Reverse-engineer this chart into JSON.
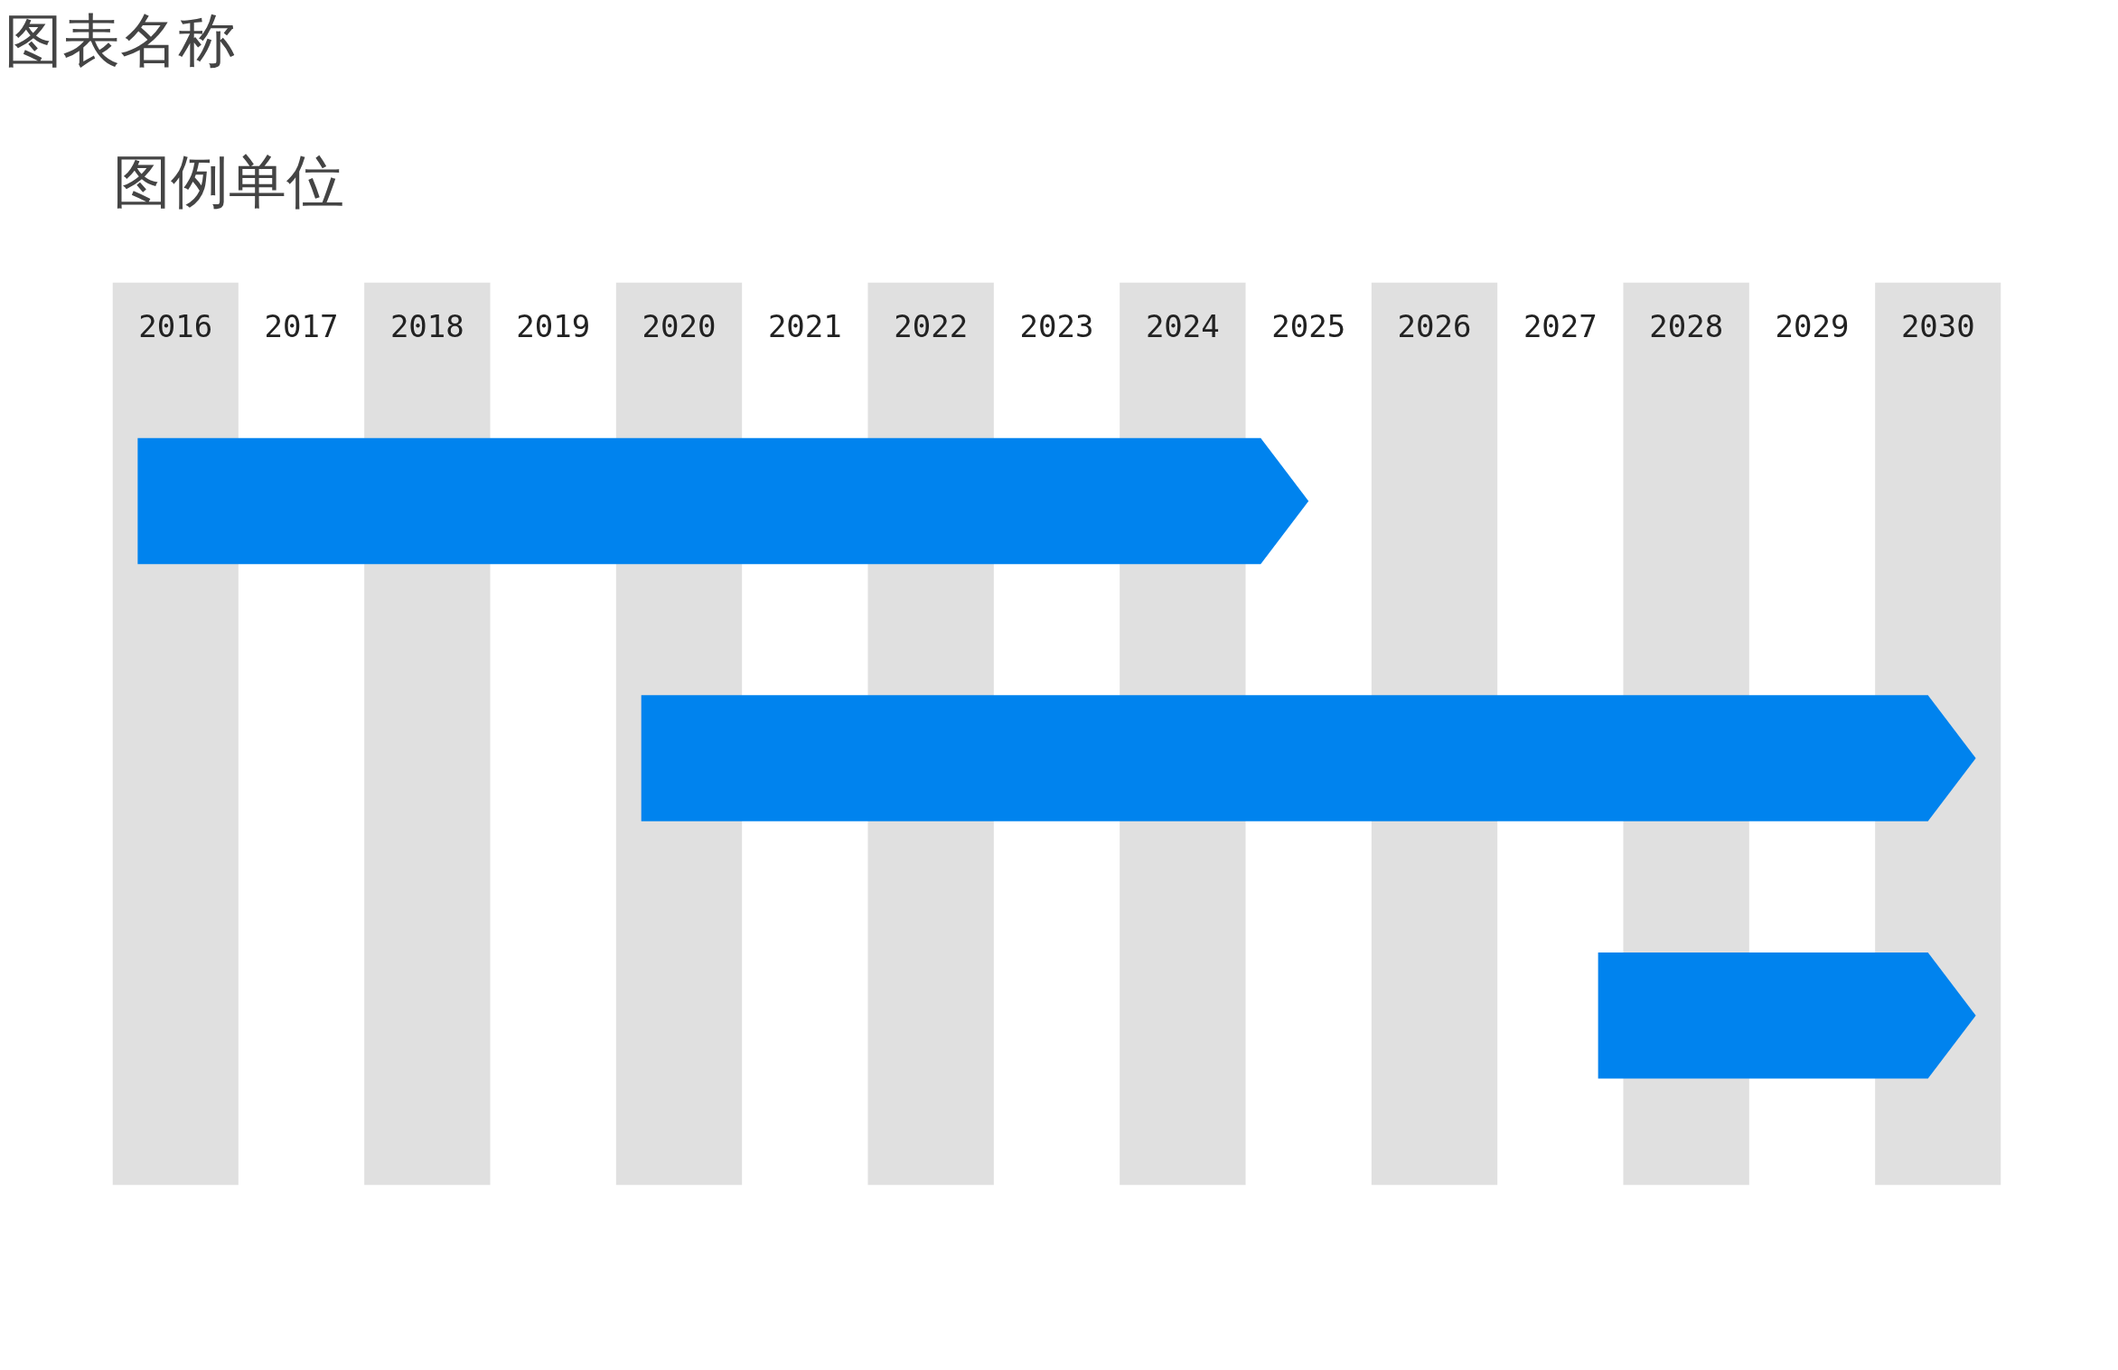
{
  "chart_data": {
    "type": "bar",
    "orientation": "horizontal",
    "title": "图表名称",
    "subtitle": "图例单位",
    "categories": [
      null,
      null,
      null
    ],
    "base": [
      2015.7,
      2019.7,
      2027.3
    ],
    "values": [
      9.3,
      10.6,
      3.0
    ],
    "color": "#0083ee",
    "xlim": [
      2015.5,
      2030.5
    ],
    "xticks": [
      2016,
      2017,
      2018,
      2019,
      2020,
      2021,
      2022,
      2023,
      2024,
      2025,
      2026,
      2027,
      2028,
      2029,
      2030
    ],
    "tick_labels": "x",
    "grid": false,
    "bands": [
      {
        "axis": "x",
        "from": 2015.5,
        "to": 2016.5,
        "color": "#e0e0e0"
      },
      {
        "axis": "x",
        "from": 2017.5,
        "to": 2018.5,
        "color": "#e0e0e0"
      },
      {
        "axis": "x",
        "from": 2019.5,
        "to": 2020.5,
        "color": "#e0e0e0"
      },
      {
        "axis": "x",
        "from": 2021.5,
        "to": 2022.5,
        "color": "#e0e0e0"
      },
      {
        "axis": "x",
        "from": 2023.5,
        "to": 2024.5,
        "color": "#e0e0e0"
      },
      {
        "axis": "x",
        "from": 2025.5,
        "to": 2026.5,
        "color": "#e0e0e0"
      },
      {
        "axis": "x",
        "from": 2027.5,
        "to": 2028.5,
        "color": "#e0e0e0"
      },
      {
        "axis": "x",
        "from": 2029.5,
        "to": 2030.5,
        "color": "#e0e0e0"
      }
    ]
  }
}
